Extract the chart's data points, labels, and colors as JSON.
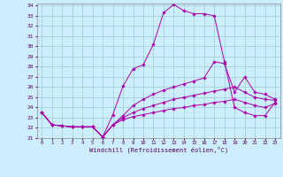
{
  "xlabel": "Windchill (Refroidissement éolien,°C)",
  "bg_color": "#cceeff",
  "grid_color": "#99cccc",
  "line_color": "#aa00aa",
  "xlim": [
    -0.5,
    23.5
  ],
  "ylim": [
    21,
    34.2
  ],
  "xticks": [
    0,
    1,
    2,
    3,
    4,
    5,
    6,
    7,
    8,
    9,
    10,
    11,
    12,
    13,
    14,
    15,
    16,
    17,
    18,
    19,
    20,
    21,
    22,
    23
  ],
  "yticks": [
    21,
    22,
    23,
    24,
    25,
    26,
    27,
    28,
    29,
    30,
    31,
    32,
    33,
    34
  ],
  "lines": [
    {
      "x": [
        0,
        1,
        2,
        3,
        4,
        5,
        6,
        7,
        8,
        9,
        10,
        11,
        12,
        13,
        14,
        15,
        16,
        17,
        18,
        19,
        20,
        21,
        22,
        23
      ],
      "y": [
        23.5,
        22.3,
        22.2,
        22.1,
        22.1,
        22.1,
        21.1,
        23.3,
        26.1,
        27.8,
        28.2,
        30.2,
        33.3,
        34.1,
        33.5,
        33.2,
        33.2,
        33.0,
        28.5,
        24.0,
        23.5,
        23.2,
        23.2,
        24.5
      ]
    },
    {
      "x": [
        0,
        1,
        2,
        3,
        4,
        5,
        6,
        7,
        8,
        9,
        10,
        11,
        12,
        13,
        14,
        15,
        16,
        17,
        18,
        19,
        20,
        21,
        22,
        23
      ],
      "y": [
        23.5,
        22.3,
        22.2,
        22.1,
        22.1,
        22.1,
        21.1,
        22.3,
        23.2,
        24.2,
        24.8,
        25.3,
        25.7,
        26.0,
        26.3,
        26.6,
        26.9,
        28.5,
        28.3,
        25.5,
        27.0,
        25.5,
        25.3,
        24.8
      ]
    },
    {
      "x": [
        0,
        1,
        2,
        3,
        4,
        5,
        6,
        7,
        8,
        9,
        10,
        11,
        12,
        13,
        14,
        15,
        16,
        17,
        18,
        19,
        20,
        21,
        22,
        23
      ],
      "y": [
        23.5,
        22.3,
        22.2,
        22.1,
        22.1,
        22.1,
        21.1,
        22.3,
        23.0,
        23.5,
        23.9,
        24.2,
        24.5,
        24.8,
        25.0,
        25.2,
        25.4,
        25.6,
        25.8,
        26.0,
        25.5,
        25.0,
        24.8,
        24.7
      ]
    },
    {
      "x": [
        0,
        1,
        2,
        3,
        4,
        5,
        6,
        7,
        8,
        9,
        10,
        11,
        12,
        13,
        14,
        15,
        16,
        17,
        18,
        19,
        20,
        21,
        22,
        23
      ],
      "y": [
        23.5,
        22.3,
        22.2,
        22.1,
        22.1,
        22.1,
        21.1,
        22.3,
        22.8,
        23.1,
        23.3,
        23.5,
        23.7,
        23.9,
        24.0,
        24.2,
        24.3,
        24.5,
        24.6,
        24.8,
        24.5,
        24.2,
        24.0,
        24.4
      ]
    }
  ]
}
